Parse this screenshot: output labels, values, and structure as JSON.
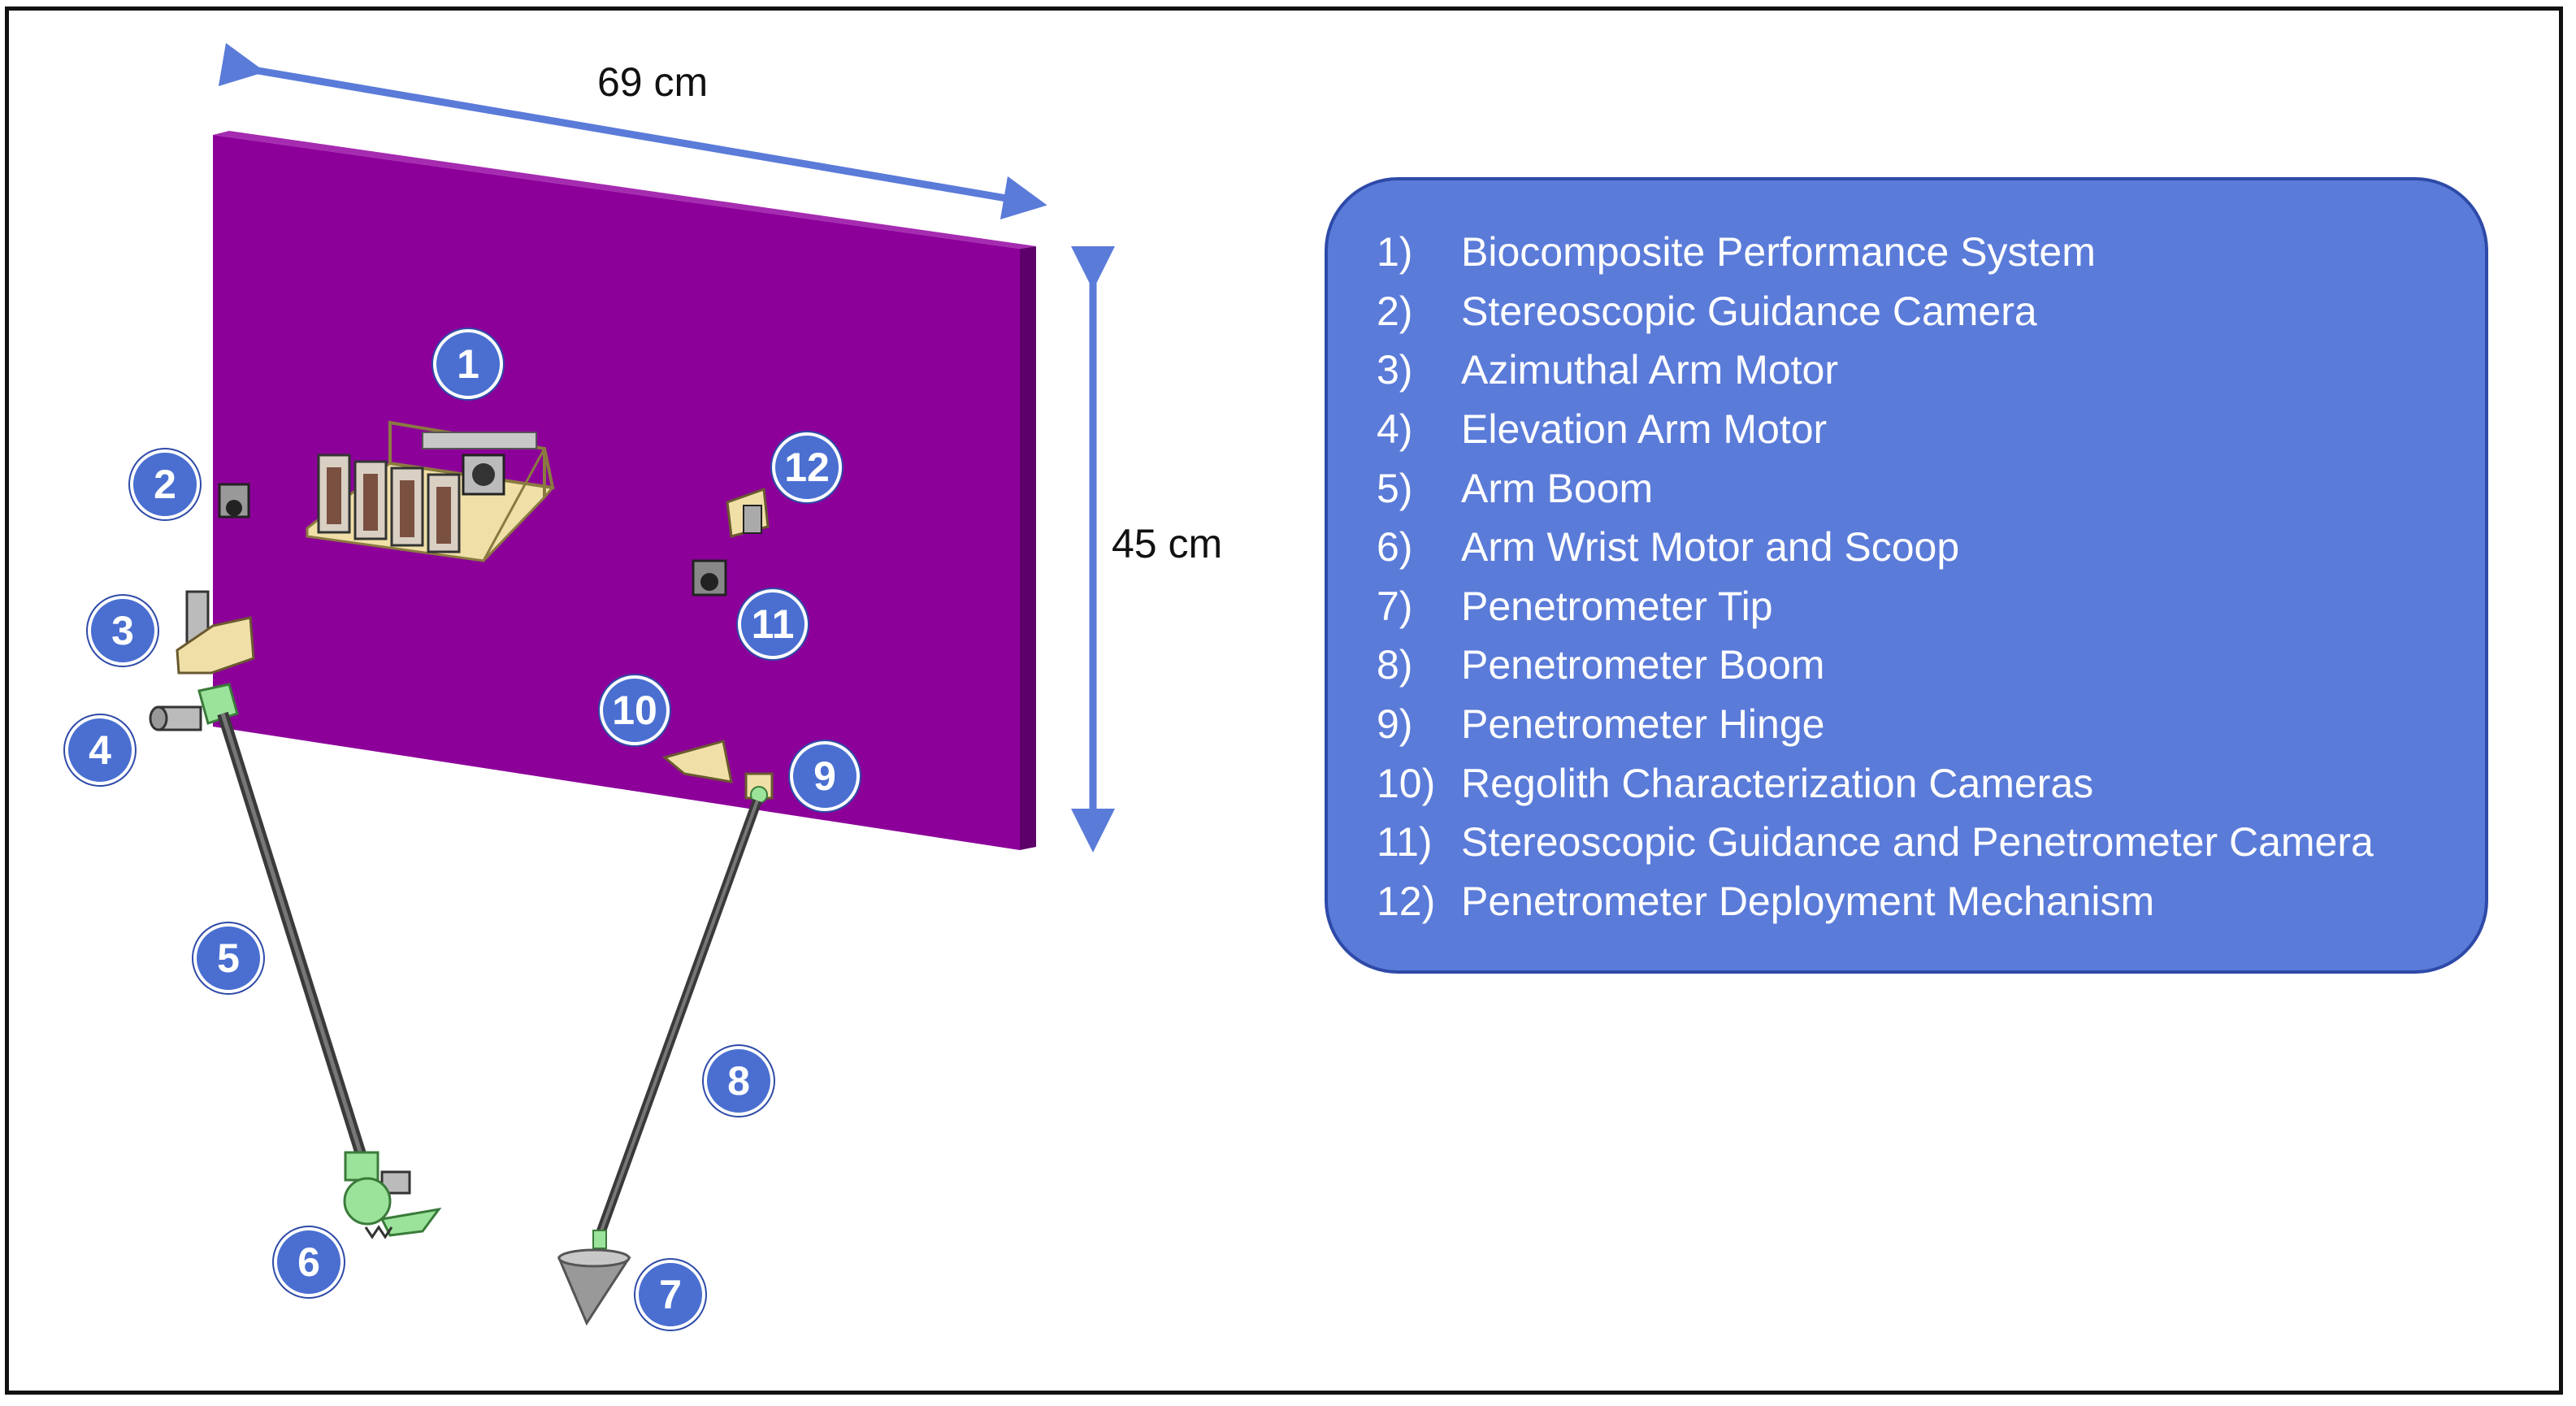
{
  "dimensions": {
    "width_label": "69 cm",
    "height_label": "45 cm"
  },
  "colors": {
    "panel": "#8c0099",
    "panel_edge": "#5e006a",
    "arrow": "#5b7bd9",
    "legend_bg": "#5b7bd9",
    "badge": "#4a6fd1",
    "component_green": "#9be39b",
    "component_tan": "#f0e0a8"
  },
  "callouts": [
    {
      "id": "1",
      "label": "1"
    },
    {
      "id": "2",
      "label": "2"
    },
    {
      "id": "3",
      "label": "3"
    },
    {
      "id": "4",
      "label": "4"
    },
    {
      "id": "5",
      "label": "5"
    },
    {
      "id": "6",
      "label": "6"
    },
    {
      "id": "7",
      "label": "7"
    },
    {
      "id": "8",
      "label": "8"
    },
    {
      "id": "9",
      "label": "9"
    },
    {
      "id": "10",
      "label": "10"
    },
    {
      "id": "11",
      "label": "11"
    },
    {
      "id": "12",
      "label": "12"
    }
  ],
  "legend": [
    {
      "num": "1)",
      "text": "Biocomposite Performance System"
    },
    {
      "num": "2)",
      "text": "Stereoscopic Guidance Camera"
    },
    {
      "num": "3)",
      "text": "Azimuthal Arm Motor"
    },
    {
      "num": "4)",
      "text": "Elevation Arm Motor"
    },
    {
      "num": "5)",
      "text": "Arm Boom"
    },
    {
      "num": "6)",
      "text": "Arm Wrist Motor and Scoop"
    },
    {
      "num": "7)",
      "text": "Penetrometer Tip"
    },
    {
      "num": "8)",
      "text": "Penetrometer Boom"
    },
    {
      "num": "9)",
      "text": "Penetrometer Hinge"
    },
    {
      "num": "10)",
      "text": "Regolith Characterization Cameras"
    },
    {
      "num": "11)",
      "text": "Stereoscopic Guidance and Penetrometer Camera"
    },
    {
      "num": "12)",
      "text": "Penetrometer Deployment Mechanism"
    }
  ]
}
